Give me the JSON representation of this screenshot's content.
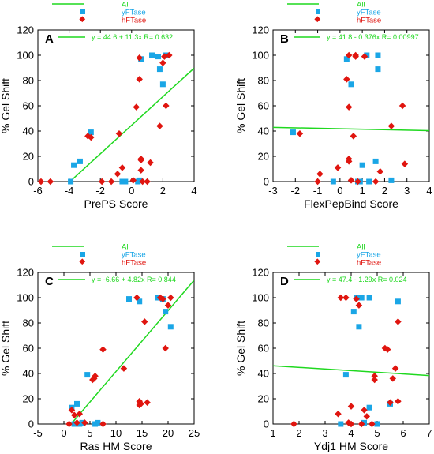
{
  "colors": {
    "all": "#1fd81f",
    "yFTase": "#1aa6e6",
    "hFTase": "#e0150f",
    "axis": "#000000"
  },
  "chart_data": [
    {
      "type": "scatter",
      "panel": "A",
      "xlabel": "PrePS Score",
      "ylabel": "% Gel Shift",
      "xlim": [
        -6,
        4
      ],
      "ylim": [
        0,
        120
      ],
      "xticks": [
        "-6",
        "-4",
        "-2",
        "0",
        "2",
        "4"
      ],
      "yticks": [
        "0",
        "20",
        "40",
        "60",
        "80",
        "100",
        "120"
      ],
      "legend": [
        "All",
        "yFTase",
        "hFTase"
      ],
      "fit_text": "y = 44.6 + 11.3x   R= 0.632",
      "fit": {
        "intercept": 44.6,
        "slope": 11.3
      },
      "series": [
        {
          "name": "yFTase",
          "points": [
            [
              -3.9,
              0
            ],
            [
              -3.7,
              13
            ],
            [
              -3.3,
              16
            ],
            [
              -2.6,
              39
            ],
            [
              -0.6,
              0
            ],
            [
              -0.4,
              0
            ],
            [
              0.4,
              0
            ],
            [
              0.5,
              1
            ],
            [
              0.6,
              97
            ],
            [
              1.3,
              100
            ],
            [
              1.7,
              99
            ],
            [
              1.8,
              89
            ],
            [
              2.0,
              77
            ],
            [
              2.2,
              100
            ]
          ]
        },
        {
          "name": "hFTase",
          "points": [
            [
              -5.8,
              0
            ],
            [
              -5.2,
              0
            ],
            [
              -2.8,
              36
            ],
            [
              -2.6,
              35
            ],
            [
              -1.9,
              0
            ],
            [
              -1.3,
              0
            ],
            [
              -0.9,
              6
            ],
            [
              -0.8,
              38
            ],
            [
              -0.6,
              11
            ],
            [
              0.1,
              1
            ],
            [
              0.3,
              59
            ],
            [
              0.5,
              81
            ],
            [
              0.5,
              98
            ],
            [
              0.6,
              17
            ],
            [
              0.6,
              18
            ],
            [
              0.6,
              9
            ],
            [
              0.7,
              0
            ],
            [
              1.0,
              0
            ],
            [
              1.2,
              15
            ],
            [
              1.8,
              44
            ],
            [
              2.0,
              94
            ],
            [
              2.1,
              99
            ],
            [
              2.2,
              60
            ],
            [
              2.4,
              100
            ]
          ]
        }
      ]
    },
    {
      "type": "scatter",
      "panel": "B",
      "xlabel": "FlexPepBind Score",
      "ylabel": "% Gel Shift",
      "xlim": [
        -3,
        4
      ],
      "ylim": [
        0,
        120
      ],
      "xticks": [
        "-3",
        "-2",
        "-1",
        "0",
        "1",
        "2",
        "3",
        "4"
      ],
      "yticks": [
        "0",
        "20",
        "40",
        "60",
        "80",
        "100",
        "120"
      ],
      "legend": [
        "All",
        "yFTase",
        "hFTase"
      ],
      "fit_text": "y = 41.8 - 0.376x   R= 0.00997",
      "fit": {
        "intercept": 41.8,
        "slope": -0.376
      },
      "series": [
        {
          "name": "yFTase",
          "points": [
            [
              -2.1,
              39
            ],
            [
              -0.3,
              0
            ],
            [
              0.3,
              97
            ],
            [
              0.5,
              77
            ],
            [
              0.8,
              0
            ],
            [
              0.9,
              0
            ],
            [
              1.0,
              13
            ],
            [
              1.2,
              100
            ],
            [
              1.3,
              0
            ],
            [
              1.6,
              16
            ],
            [
              1.7,
              100
            ],
            [
              1.7,
              89
            ],
            [
              2.3,
              1
            ]
          ]
        },
        {
          "name": "hFTase",
          "points": [
            [
              -1.8,
              38
            ],
            [
              -1.0,
              0
            ],
            [
              -0.9,
              6
            ],
            [
              -0.1,
              11
            ],
            [
              0.3,
              81
            ],
            [
              0.4,
              59
            ],
            [
              0.4,
              100
            ],
            [
              0.4,
              18
            ],
            [
              0.4,
              16
            ],
            [
              0.5,
              1
            ],
            [
              0.6,
              36
            ],
            [
              0.7,
              100
            ],
            [
              0.7,
              99
            ],
            [
              0.8,
              0
            ],
            [
              1.1,
              99
            ],
            [
              1.6,
              0
            ],
            [
              1.8,
              8
            ],
            [
              2.3,
              44
            ],
            [
              2.8,
              60
            ],
            [
              2.9,
              14
            ]
          ]
        }
      ]
    },
    {
      "type": "scatter",
      "panel": "C",
      "xlabel": "Ras HM Score",
      "ylabel": "% Gel Shift",
      "xlim": [
        -5,
        25
      ],
      "ylim": [
        0,
        120
      ],
      "xticks": [
        "-5",
        "0",
        "5",
        "10",
        "15",
        "20",
        "25"
      ],
      "yticks": [
        "0",
        "20",
        "40",
        "60",
        "80",
        "100",
        "120"
      ],
      "legend": [
        "All",
        "yFTase",
        "hFTase"
      ],
      "fit_text": "y = -6.66 + 4.82x   R= 0.844",
      "fit": {
        "intercept": -6.66,
        "slope": 4.82
      },
      "series": [
        {
          "name": "yFTase",
          "points": [
            [
              1.5,
              13
            ],
            [
              2.0,
              0
            ],
            [
              2.5,
              16
            ],
            [
              3.0,
              0
            ],
            [
              3.5,
              1
            ],
            [
              4.5,
              39
            ],
            [
              6.0,
              0
            ],
            [
              6.5,
              1
            ],
            [
              12.5,
              99
            ],
            [
              18.0,
              100
            ],
            [
              19.0,
              99
            ],
            [
              19.5,
              89
            ],
            [
              20.5,
              77
            ],
            [
              14.5,
              97
            ]
          ]
        },
        {
          "name": "hFTase",
          "points": [
            [
              1.0,
              0
            ],
            [
              1.5,
              11
            ],
            [
              2.0,
              7
            ],
            [
              2.5,
              1
            ],
            [
              3.0,
              8
            ],
            [
              4.0,
              1
            ],
            [
              5.5,
              35
            ],
            [
              5.8,
              36
            ],
            [
              6.0,
              38
            ],
            [
              7.5,
              59
            ],
            [
              7.5,
              0
            ],
            [
              11.5,
              44
            ],
            [
              14.0,
              100
            ],
            [
              14.5,
              18
            ],
            [
              14.5,
              15
            ],
            [
              15.5,
              81
            ],
            [
              16.0,
              17
            ],
            [
              18.5,
              100
            ],
            [
              19.0,
              99
            ],
            [
              19.5,
              60
            ],
            [
              20.0,
              94
            ],
            [
              20.5,
              100
            ],
            [
              14.8,
              16
            ]
          ]
        }
      ]
    },
    {
      "type": "scatter",
      "panel": "D",
      "xlabel": "Ydj1 HM Score",
      "ylabel": "% Gel Shift",
      "xlim": [
        1,
        7
      ],
      "ylim": [
        0,
        120
      ],
      "xticks": [
        "1",
        "2",
        "3",
        "4",
        "5",
        "6",
        "7"
      ],
      "yticks": [
        "0",
        "20",
        "40",
        "60",
        "80",
        "100",
        "120"
      ],
      "legend": [
        "All",
        "yFTase",
        "hFTase"
      ],
      "fit_text": "y = 47.4 - 1.29x   R= 0.024",
      "fit": {
        "intercept": 47.4,
        "slope": -1.29
      },
      "series": [
        {
          "name": "yFTase",
          "points": [
            [
              3.8,
              39
            ],
            [
              3.6,
              0
            ],
            [
              4.1,
              89
            ],
            [
              4.2,
              100
            ],
            [
              4.3,
              77
            ],
            [
              4.4,
              100
            ],
            [
              4.5,
              1
            ],
            [
              4.7,
              100
            ],
            [
              4.7,
              13
            ],
            [
              5.0,
              0
            ],
            [
              5.5,
              16
            ],
            [
              5.8,
              97
            ]
          ]
        },
        {
          "name": "hFTase",
          "points": [
            [
              1.8,
              0
            ],
            [
              3.5,
              8
            ],
            [
              3.6,
              100
            ],
            [
              3.8,
              100
            ],
            [
              3.9,
              1
            ],
            [
              4.0,
              0
            ],
            [
              4.0,
              14
            ],
            [
              4.2,
              99
            ],
            [
              4.3,
              94
            ],
            [
              4.4,
              0
            ],
            [
              4.5,
              11
            ],
            [
              4.6,
              6
            ],
            [
              4.8,
              0
            ],
            [
              4.9,
              38
            ],
            [
              4.9,
              35
            ],
            [
              5.3,
              60
            ],
            [
              5.4,
              59
            ],
            [
              5.5,
              17
            ],
            [
              5.6,
              36
            ],
            [
              5.7,
              44
            ],
            [
              5.8,
              81
            ],
            [
              5.8,
              18
            ]
          ]
        }
      ]
    }
  ]
}
